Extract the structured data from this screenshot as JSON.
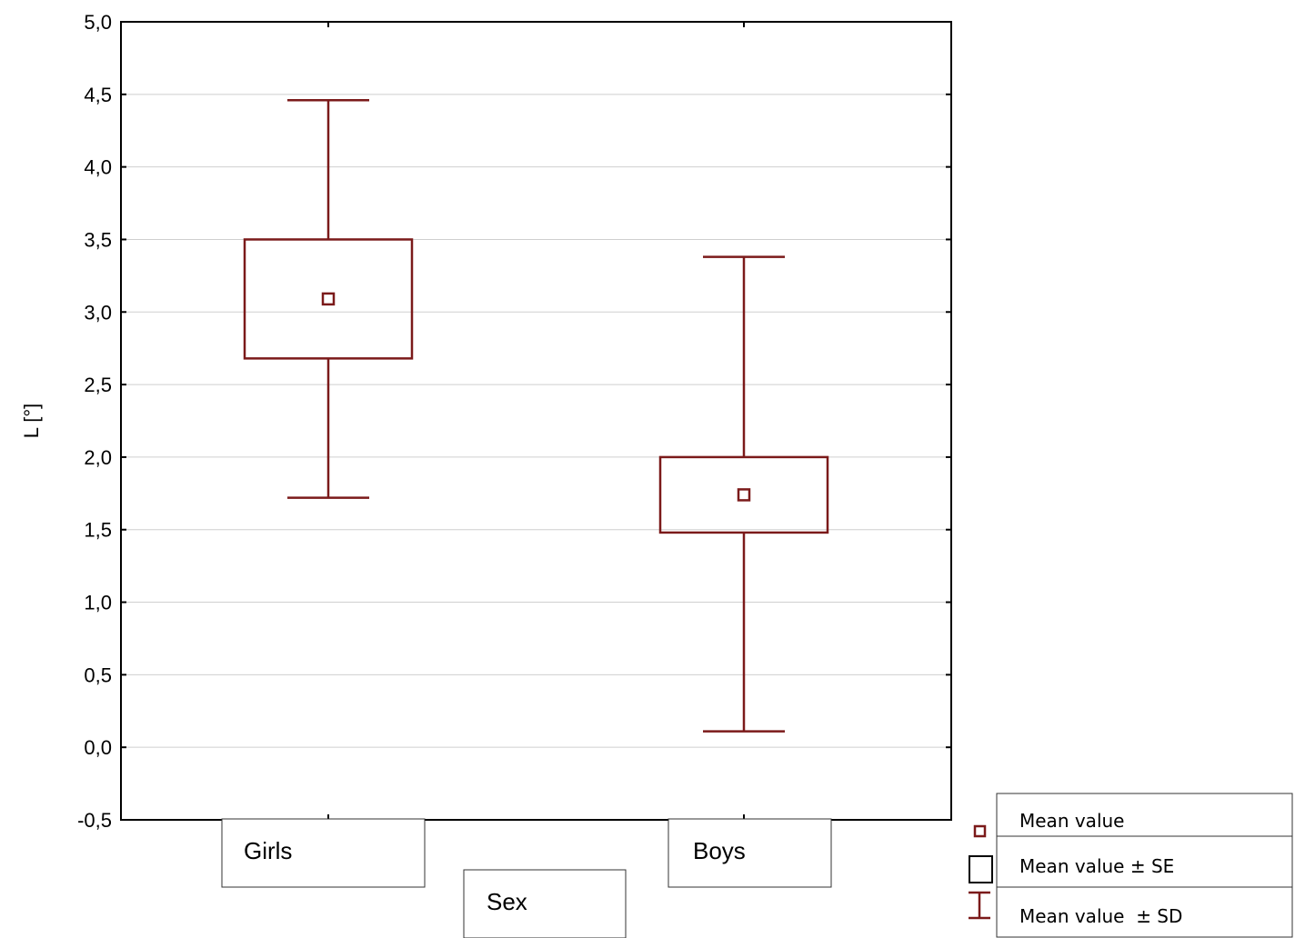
{
  "chart_data": {
    "type": "box",
    "ylabel": "L [°]",
    "xlabel": "Sex",
    "ylim": [
      -0.5,
      5.0
    ],
    "yticks": [
      "-0,5",
      "0,0",
      "0,5",
      "1,0",
      "1,5",
      "2,0",
      "2,5",
      "3,0",
      "3,5",
      "4,0",
      "4,5",
      "5,0"
    ],
    "grid": true,
    "categories": [
      "Girls",
      "Boys"
    ],
    "series": [
      {
        "category": "Girls",
        "mean": 3.09,
        "se_low": 2.68,
        "se_high": 3.5,
        "sd_low": 1.72,
        "sd_high": 4.46
      },
      {
        "category": "Boys",
        "mean": 1.74,
        "se_low": 1.48,
        "se_high": 2.0,
        "sd_low": 0.11,
        "sd_high": 3.38
      }
    ],
    "legend": [
      "Mean value",
      "Mean value ± SE",
      "Mean value  ± SD"
    ],
    "legend_position": "bottom-right",
    "color": "#7b1a1a"
  }
}
